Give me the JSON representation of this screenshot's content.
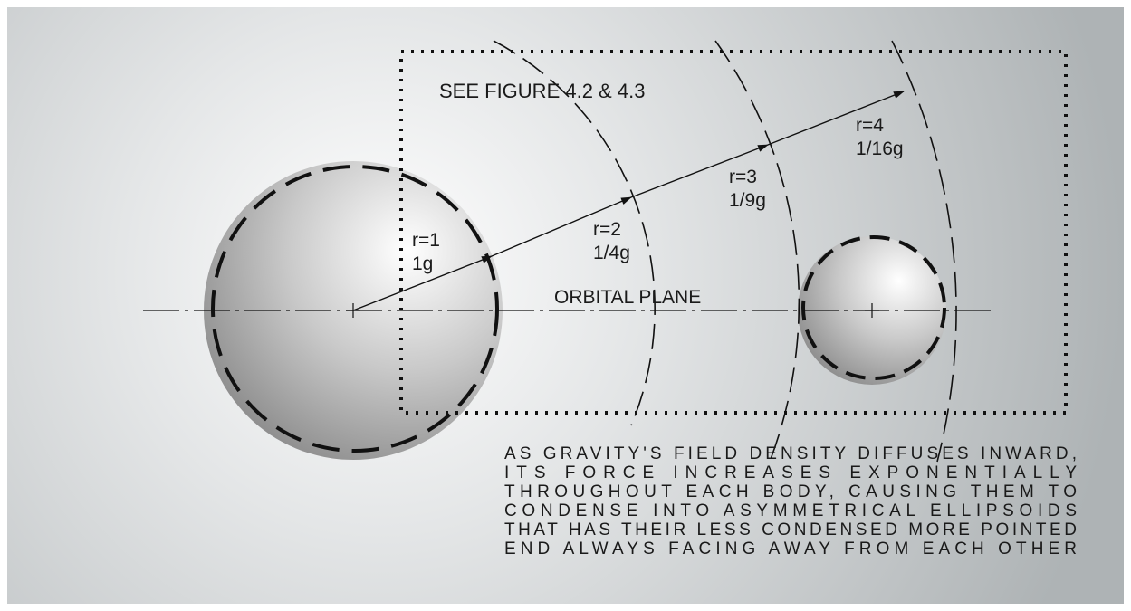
{
  "reference": "SEE FIGURE 4.2 & 4.3",
  "plane_label": "ORBITAL PLANE",
  "radii": [
    {
      "r": "r=1",
      "g": "1g"
    },
    {
      "r": "r=2",
      "g": "1/4g"
    },
    {
      "r": "r=3",
      "g": "1/9g"
    },
    {
      "r": "r=4",
      "g": "1/16g"
    }
  ],
  "caption": [
    "AS GRAVITY'S FIELD DENSITY DIFFUSES INWARD,",
    "ITS FORCE INCREASES EXPONENTIALLY",
    "THROUGHOUT EACH BODY, CAUSING THEM TO",
    "CONDENSE INTO ASYMMETRICAL ELLIPSOIDS",
    "THAT HAS THEIR LESS CONDENSED MORE POINTED",
    "END ALWAYS FACING AWAY FROM EACH OTHER"
  ]
}
